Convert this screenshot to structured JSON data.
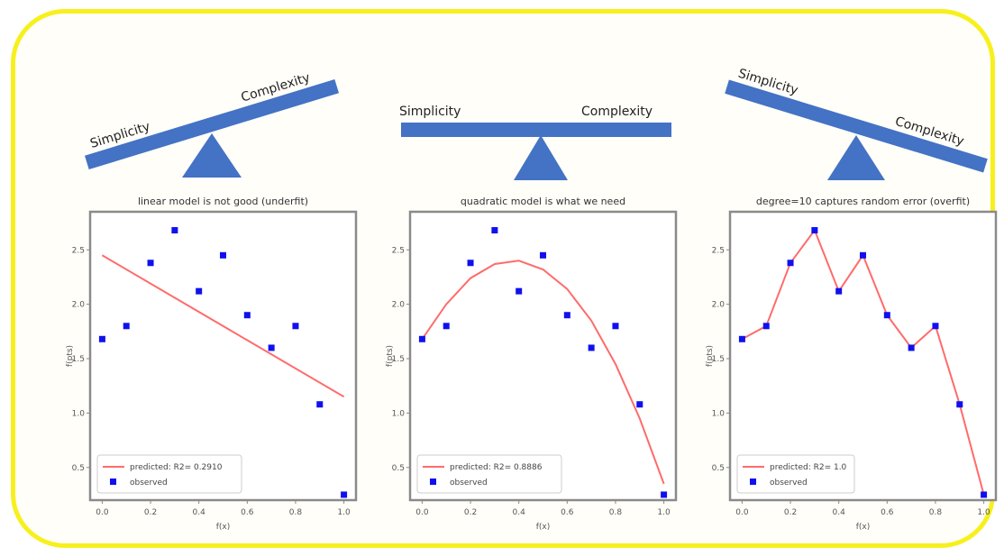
{
  "balances": [
    {
      "left": "Simplicity",
      "right": "Complexity",
      "tilt": "right-up"
    },
    {
      "left": "Simplicity",
      "right": "Complexity",
      "tilt": "level"
    },
    {
      "left": "Simplicity",
      "right": "Complexity",
      "tilt": "left-up"
    }
  ],
  "colors": {
    "frame": "#f7f01e",
    "beam": "#4472c4",
    "fit": "#ff6b6b",
    "points": "#1010ee"
  },
  "chart_data": [
    {
      "type": "scatter",
      "title": "linear model is not good (underfit)",
      "xlabel": "f(x)",
      "ylabel": "f(pts)",
      "xlim": [
        -0.05,
        1.05
      ],
      "ylim": [
        0.2,
        2.85
      ],
      "xticks": [
        "0.0",
        "0.2",
        "0.4",
        "0.6",
        "0.8",
        "1.0"
      ],
      "yticks": [
        "0.5",
        "1.0",
        "1.5",
        "2.0",
        "2.5"
      ],
      "legend": {
        "placement": "bottom-left",
        "predicted": "predicted: R2= 0.2910",
        "observed": "observed"
      },
      "observed": {
        "x": [
          0.0,
          0.1,
          0.2,
          0.3,
          0.4,
          0.5,
          0.6,
          0.7,
          0.8,
          0.9,
          1.0
        ],
        "y": [
          1.68,
          1.8,
          2.38,
          2.68,
          2.12,
          2.45,
          1.9,
          1.6,
          1.8,
          1.08,
          0.25
        ]
      },
      "predicted": {
        "x": [
          0.0,
          1.0
        ],
        "y": [
          2.45,
          1.15
        ]
      }
    },
    {
      "type": "scatter",
      "title": "quadratic model is what we need",
      "xlabel": "f(x)",
      "ylabel": "f(pts)",
      "xlim": [
        -0.05,
        1.05
      ],
      "ylim": [
        0.2,
        2.85
      ],
      "xticks": [
        "0.0",
        "0.2",
        "0.4",
        "0.6",
        "0.8",
        "1.0"
      ],
      "yticks": [
        "0.5",
        "1.0",
        "1.5",
        "2.0",
        "2.5"
      ],
      "legend": {
        "placement": "bottom-left",
        "predicted": "predicted: R2= 0.8886",
        "observed": "observed"
      },
      "observed": {
        "x": [
          0.0,
          0.1,
          0.2,
          0.3,
          0.4,
          0.5,
          0.6,
          0.7,
          0.8,
          0.9,
          1.0
        ],
        "y": [
          1.68,
          1.8,
          2.38,
          2.68,
          2.12,
          2.45,
          1.9,
          1.6,
          1.8,
          1.08,
          0.25
        ]
      },
      "predicted": {
        "x": [
          0.0,
          0.1,
          0.2,
          0.3,
          0.4,
          0.5,
          0.6,
          0.7,
          0.8,
          0.9,
          1.0
        ],
        "y": [
          1.68,
          2.0,
          2.24,
          2.37,
          2.4,
          2.32,
          2.14,
          1.85,
          1.45,
          0.95,
          0.35
        ]
      }
    },
    {
      "type": "scatter",
      "title": "degree=10 captures random error (overfit)",
      "xlabel": "f(x)",
      "ylabel": "f(pts)",
      "xlim": [
        -0.05,
        1.05
      ],
      "ylim": [
        0.2,
        2.85
      ],
      "xticks": [
        "0.0",
        "0.2",
        "0.4",
        "0.6",
        "0.8",
        "1.0"
      ],
      "yticks": [
        "0.5",
        "1.0",
        "1.5",
        "2.0",
        "2.5"
      ],
      "legend": {
        "placement": "bottom-left",
        "predicted": "predicted: R2= 1.0",
        "observed": "observed"
      },
      "observed": {
        "x": [
          0.0,
          0.1,
          0.2,
          0.3,
          0.4,
          0.5,
          0.6,
          0.7,
          0.8,
          0.9,
          1.0
        ],
        "y": [
          1.68,
          1.8,
          2.38,
          2.68,
          2.12,
          2.45,
          1.9,
          1.6,
          1.8,
          1.08,
          0.25
        ]
      },
      "predicted": {
        "x": [
          0.0,
          0.1,
          0.2,
          0.3,
          0.4,
          0.5,
          0.6,
          0.7,
          0.8,
          0.9,
          1.0
        ],
        "y": [
          1.68,
          1.8,
          2.38,
          2.68,
          2.12,
          2.45,
          1.9,
          1.6,
          1.8,
          1.08,
          0.25
        ]
      }
    }
  ]
}
